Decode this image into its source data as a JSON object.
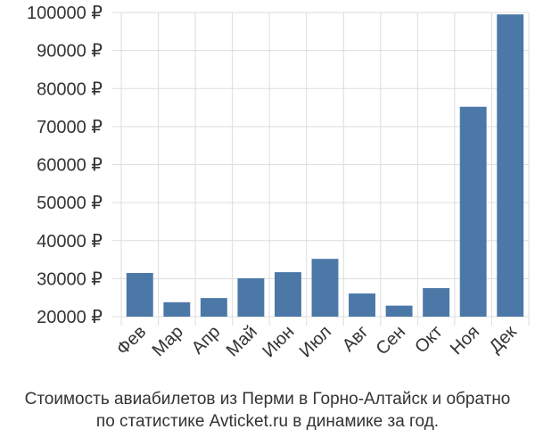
{
  "chart_data": {
    "type": "bar",
    "categories": [
      "Фев",
      "Мар",
      "Апр",
      "Май",
      "Июн",
      "Июл",
      "Авг",
      "Сен",
      "Окт",
      "Ноя",
      "Дек"
    ],
    "values": [
      31500,
      23800,
      24900,
      30100,
      31700,
      35200,
      26100,
      22900,
      27500,
      75200,
      99500
    ],
    "ylim": [
      20000,
      100000
    ],
    "yticks": [
      20000,
      30000,
      40000,
      50000,
      60000,
      70000,
      80000,
      90000,
      100000
    ],
    "ytick_labels": [
      "20000 ₽",
      "30000 ₽",
      "40000 ₽",
      "50000 ₽",
      "60000 ₽",
      "70000 ₽",
      "80000 ₽",
      "90000 ₽",
      "100000 ₽"
    ],
    "grid": true,
    "bar_color": "#4c78a8"
  },
  "caption": {
    "line1": "Стоимость авиабилетов из Перми в Горно-Алтайск и обратно",
    "line2": "по статистике Avticket.ru в динамике за год."
  }
}
